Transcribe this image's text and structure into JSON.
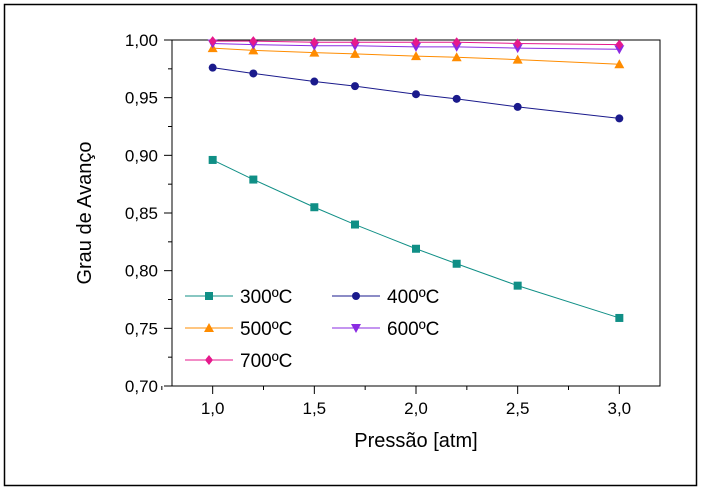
{
  "chart_data": {
    "type": "line",
    "xlabel": "Pressão [atm]",
    "ylabel": "Grau de Avanço",
    "xlim": [
      0.8,
      3.2
    ],
    "ylim": [
      0.7,
      1.0
    ],
    "x_ticks": [
      "1,0",
      "1,5",
      "2,0",
      "2,5",
      "3,0"
    ],
    "x_tick_values": [
      1.0,
      1.5,
      2.0,
      2.5,
      3.0
    ],
    "y_ticks": [
      "0,70",
      "0,75",
      "0,80",
      "0,85",
      "0,90",
      "0,95",
      "1,00"
    ],
    "y_tick_values": [
      0.7,
      0.75,
      0.8,
      0.85,
      0.9,
      0.95,
      1.0
    ],
    "legend_placement": "bottom-left",
    "series": [
      {
        "name": "300ºC",
        "color": "#108f86",
        "marker": "square",
        "x": [
          1.0,
          1.2,
          1.5,
          1.7,
          2.0,
          2.2,
          2.5,
          3.0
        ],
        "values": [
          0.896,
          0.879,
          0.855,
          0.84,
          0.819,
          0.806,
          0.787,
          0.759
        ]
      },
      {
        "name": "400ºC",
        "color": "#1a1a8c",
        "marker": "circle",
        "x": [
          1.0,
          1.2,
          1.5,
          1.7,
          2.0,
          2.2,
          2.5,
          3.0
        ],
        "values": [
          0.976,
          0.971,
          0.964,
          0.96,
          0.953,
          0.949,
          0.942,
          0.932
        ]
      },
      {
        "name": "500ºC",
        "color": "#ff8c00",
        "marker": "triangle-up",
        "x": [
          1.0,
          1.2,
          1.5,
          1.7,
          2.0,
          2.2,
          2.5,
          3.0
        ],
        "values": [
          0.993,
          0.991,
          0.989,
          0.988,
          0.986,
          0.985,
          0.983,
          0.979
        ]
      },
      {
        "name": "600ºC",
        "color": "#8a2be2",
        "marker": "triangle-down",
        "x": [
          1.0,
          1.2,
          1.5,
          1.7,
          2.0,
          2.2,
          2.5,
          3.0
        ],
        "values": [
          0.997,
          0.996,
          0.995,
          0.995,
          0.994,
          0.994,
          0.993,
          0.992
        ]
      },
      {
        "name": "700ºC",
        "color": "#e6198c",
        "marker": "diamond",
        "x": [
          1.0,
          1.2,
          1.5,
          1.7,
          2.0,
          2.2,
          2.5,
          3.0
        ],
        "values": [
          0.999,
          0.999,
          0.998,
          0.998,
          0.998,
          0.998,
          0.997,
          0.996
        ]
      }
    ]
  }
}
